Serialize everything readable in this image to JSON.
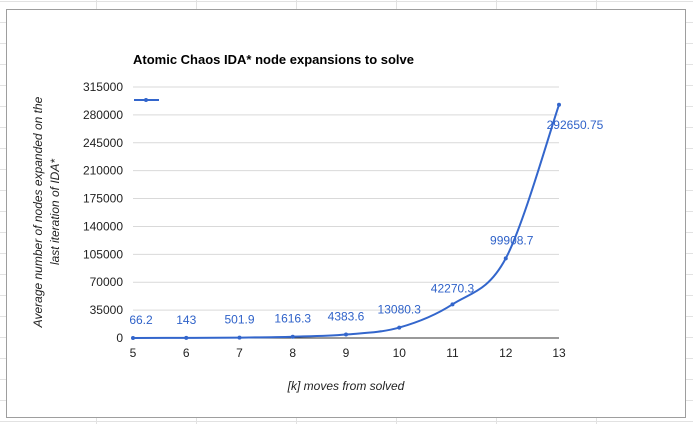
{
  "chart_data": {
    "type": "line",
    "title": "Atomic Chaos IDA* node expansions to solve",
    "xlabel": "[k] moves from solved",
    "ylabel_lines": [
      "Average number of nodes expanded on the",
      "last iteration of IDA*"
    ],
    "x": [
      5,
      6,
      7,
      8,
      9,
      10,
      11,
      12,
      13
    ],
    "x_tick_labels": [
      "5",
      "6",
      "7",
      "8",
      "9",
      "10",
      "11",
      "12",
      "13"
    ],
    "y_tick_values": [
      0,
      35000,
      70000,
      105000,
      140000,
      175000,
      210000,
      245000,
      280000,
      315000
    ],
    "y_tick_labels": [
      "0",
      "35000",
      "70000",
      "105000",
      "140000",
      "175000",
      "210000",
      "245000",
      "280000",
      "315000"
    ],
    "ylim": [
      0,
      315000
    ],
    "xlim": [
      5,
      13
    ],
    "series": [
      {
        "values": [
          66.2,
          143,
          501.9,
          1616.3,
          4383.6,
          13080.3,
          42270.3,
          99908.7,
          292650.75
        ],
        "data_labels": [
          "66.2",
          "143",
          "501.9",
          "1616.3",
          "4383.6",
          "13080.3",
          "42270.3",
          "99908.7",
          "292650.75"
        ],
        "color": "#3366cc"
      }
    ],
    "legend_position": "top-left",
    "grid": true
  }
}
